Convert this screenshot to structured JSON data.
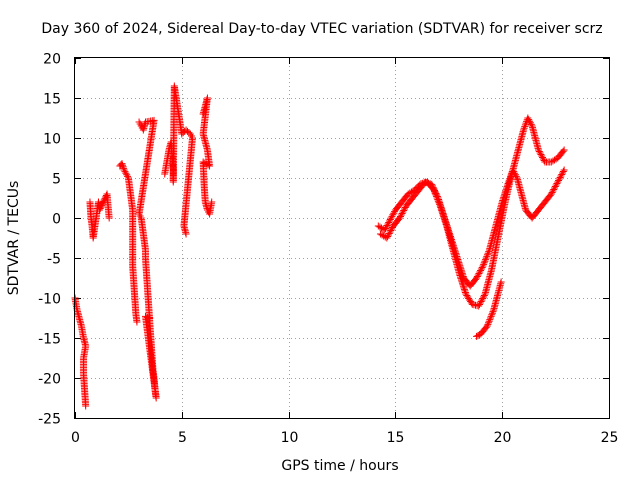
{
  "chart_data": {
    "type": "scatter",
    "title": "Day 360 of 2024, Sidereal Day-to-day VTEC variation (SDTVAR) for receiver scrz",
    "xlabel": "GPS time / hours",
    "ylabel": "SDTVAR / TECUs",
    "xlim": [
      0,
      25
    ],
    "ylim": [
      -25,
      20
    ],
    "xticks": [
      0,
      5,
      10,
      15,
      20,
      25
    ],
    "yticks": [
      -25,
      -20,
      -15,
      -10,
      -5,
      0,
      5,
      10,
      15,
      20
    ],
    "grid": true,
    "marker": "plus",
    "color": "#ff0000",
    "series": [
      {
        "name": "SDTVAR",
        "tracks": [
          [
            [
              0.0,
              -10
            ],
            [
              0.1,
              -11.5
            ],
            [
              0.2,
              -12.5
            ],
            [
              0.3,
              -13.5
            ],
            [
              0.4,
              -15
            ],
            [
              0.5,
              -16
            ],
            [
              0.4,
              -17.5
            ],
            [
              0.4,
              -19.5
            ],
            [
              0.45,
              -21.5
            ],
            [
              0.5,
              -23.5
            ]
          ],
          [
            [
              0.7,
              2
            ],
            [
              0.75,
              0
            ],
            [
              0.8,
              -1
            ],
            [
              0.85,
              -2.5
            ],
            [
              1.1,
              2
            ],
            [
              1.15,
              1
            ],
            [
              1.5,
              3
            ],
            [
              1.55,
              1.5
            ],
            [
              1.6,
              0
            ]
          ],
          [
            [
              2.1,
              6.5
            ],
            [
              2.2,
              6.8
            ],
            [
              2.3,
              6
            ],
            [
              2.5,
              5
            ],
            [
              2.6,
              3
            ],
            [
              2.7,
              1
            ],
            [
              2.7,
              -6
            ],
            [
              2.75,
              -8
            ],
            [
              2.8,
              -10
            ],
            [
              2.85,
              -12
            ],
            [
              2.9,
              -13
            ]
          ],
          [
            [
              3.0,
              12
            ],
            [
              3.1,
              11.5
            ],
            [
              3.2,
              11
            ],
            [
              3.3,
              12
            ],
            [
              3.7,
              12.2
            ],
            [
              3.0,
              0.5
            ],
            [
              3.1,
              0
            ],
            [
              3.2,
              -2
            ],
            [
              3.3,
              -4
            ],
            [
              3.3,
              -5
            ],
            [
              3.35,
              -7
            ],
            [
              3.4,
              -9
            ],
            [
              3.45,
              -11
            ],
            [
              3.5,
              -13
            ],
            [
              3.55,
              -15
            ],
            [
              3.6,
              -17
            ],
            [
              3.65,
              -19
            ],
            [
              3.7,
              -20
            ],
            [
              3.75,
              -21.5
            ],
            [
              3.8,
              -22.5
            ],
            [
              3.3,
              -12.3
            ],
            [
              3.5,
              -12.5
            ]
          ],
          [
            [
              4.2,
              5.5
            ],
            [
              4.3,
              7
            ],
            [
              4.4,
              8.5
            ],
            [
              4.5,
              9.5
            ],
            [
              4.6,
              6
            ],
            [
              4.6,
              4.5
            ],
            [
              4.65,
              16.5
            ],
            [
              5.0,
              10.5
            ],
            [
              5.2,
              11
            ],
            [
              5.4,
              10.5
            ],
            [
              5.5,
              10
            ],
            [
              5.1,
              -1
            ],
            [
              5.2,
              -2
            ]
          ],
          [
            [
              6.0,
              13
            ],
            [
              6.1,
              14
            ],
            [
              6.2,
              15
            ],
            [
              6.0,
              10.5
            ],
            [
              6.1,
              9.5
            ],
            [
              6.2,
              8.5
            ],
            [
              6.3,
              6.5
            ],
            [
              6.0,
              7
            ],
            [
              6.05,
              4
            ],
            [
              6.1,
              2
            ],
            [
              6.2,
              1
            ],
            [
              6.3,
              0.5
            ],
            [
              6.4,
              2
            ]
          ],
          [
            [
              14.2,
              -1
            ],
            [
              14.5,
              -1.5
            ],
            [
              14.8,
              0
            ],
            [
              15.0,
              1
            ],
            [
              15.3,
              2
            ],
            [
              15.6,
              3
            ],
            [
              15.9,
              3.5
            ],
            [
              16.2,
              4.3
            ],
            [
              16.5,
              4.5
            ],
            [
              16.8,
              3.5
            ],
            [
              17.1,
              1.5
            ],
            [
              17.4,
              -1
            ],
            [
              17.7,
              -4
            ],
            [
              18.0,
              -7
            ],
            [
              18.3,
              -9.5
            ],
            [
              18.6,
              -10.8
            ],
            [
              18.9,
              -11
            ],
            [
              19.2,
              -9.5
            ],
            [
              19.5,
              -6.5
            ],
            [
              19.8,
              -2.5
            ],
            [
              20.1,
              1.5
            ],
            [
              20.4,
              5
            ],
            [
              20.7,
              8
            ],
            [
              21.0,
              11
            ],
            [
              21.2,
              12.5
            ],
            [
              21.4,
              11.5
            ],
            [
              21.7,
              8.5
            ],
            [
              22.0,
              7
            ],
            [
              22.3,
              7
            ],
            [
              22.6,
              7.5
            ],
            [
              22.9,
              8.5
            ]
          ],
          [
            [
              14.3,
              -2
            ],
            [
              14.6,
              -2.5
            ],
            [
              14.9,
              -1
            ],
            [
              15.2,
              0
            ],
            [
              15.5,
              1.5
            ],
            [
              15.8,
              2.5
            ],
            [
              16.1,
              3.5
            ],
            [
              16.4,
              4.5
            ],
            [
              16.7,
              4.2
            ],
            [
              17.0,
              2.5
            ],
            [
              17.3,
              0
            ],
            [
              17.6,
              -2.5
            ],
            [
              17.9,
              -5
            ],
            [
              18.2,
              -7.5
            ],
            [
              18.5,
              -8.5
            ],
            [
              18.8,
              -7.5
            ],
            [
              19.1,
              -6
            ],
            [
              19.4,
              -4
            ],
            [
              19.7,
              -1
            ],
            [
              20.0,
              2
            ],
            [
              20.3,
              4.5
            ],
            [
              20.5,
              6
            ],
            [
              20.7,
              5
            ],
            [
              20.9,
              3
            ],
            [
              21.1,
              1
            ],
            [
              21.4,
              0
            ],
            [
              21.7,
              1
            ],
            [
              22.0,
              2
            ],
            [
              22.3,
              3
            ],
            [
              22.6,
              4.5
            ],
            [
              22.9,
              6
            ]
          ],
          [
            [
              18.8,
              -14.8
            ],
            [
              19.0,
              -14.5
            ],
            [
              19.3,
              -13.5
            ],
            [
              19.6,
              -11.5
            ],
            [
              19.8,
              -9.5
            ],
            [
              19.95,
              -8
            ]
          ]
        ]
      }
    ]
  }
}
